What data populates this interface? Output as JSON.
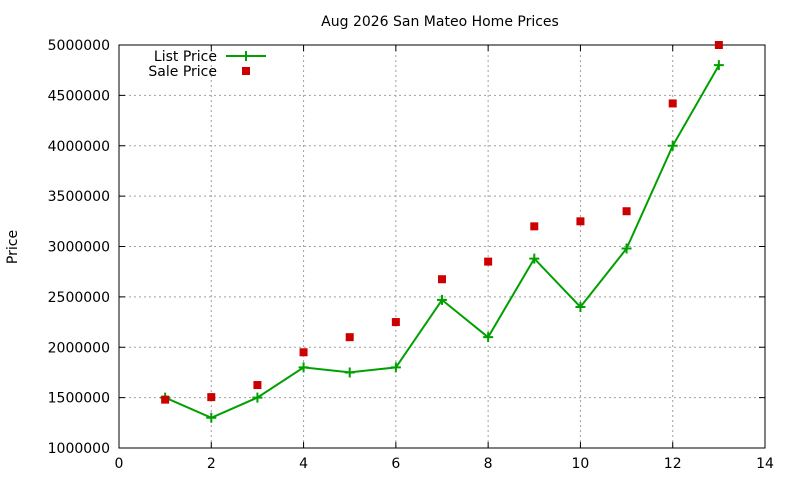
{
  "chart_data": {
    "type": "line",
    "title": "Aug 2026 San Mateo Home Prices",
    "xlabel": "",
    "ylabel": "Price",
    "xlim": [
      0,
      14
    ],
    "ylim": [
      1000000,
      5000000
    ],
    "x_ticks": [
      0,
      2,
      4,
      6,
      8,
      10,
      12,
      14
    ],
    "y_ticks": [
      1000000,
      1500000,
      2000000,
      2500000,
      3000000,
      3500000,
      4000000,
      4500000,
      5000000
    ],
    "grid": true,
    "legend_position": "top-left",
    "series": [
      {
        "name": "List Price",
        "style": "line-with-plus-markers",
        "color": "#00a000",
        "x": [
          1,
          2,
          3,
          4,
          5,
          6,
          7,
          8,
          9,
          10,
          11,
          12,
          13
        ],
        "values": [
          1500000,
          1300000,
          1500000,
          1800000,
          1750000,
          1800000,
          2470000,
          2100000,
          2880000,
          2400000,
          2980000,
          4000000,
          4800000
        ]
      },
      {
        "name": "Sale Price",
        "style": "square-points",
        "color": "#cc0000",
        "x": [
          1,
          2,
          3,
          4,
          5,
          6,
          7,
          8,
          9,
          10,
          11,
          12,
          13
        ],
        "values": [
          1480000,
          1505000,
          1625000,
          1950000,
          2100000,
          2250000,
          2675000,
          2850000,
          3200000,
          3250000,
          3350000,
          4420000,
          5000000
        ]
      }
    ]
  }
}
